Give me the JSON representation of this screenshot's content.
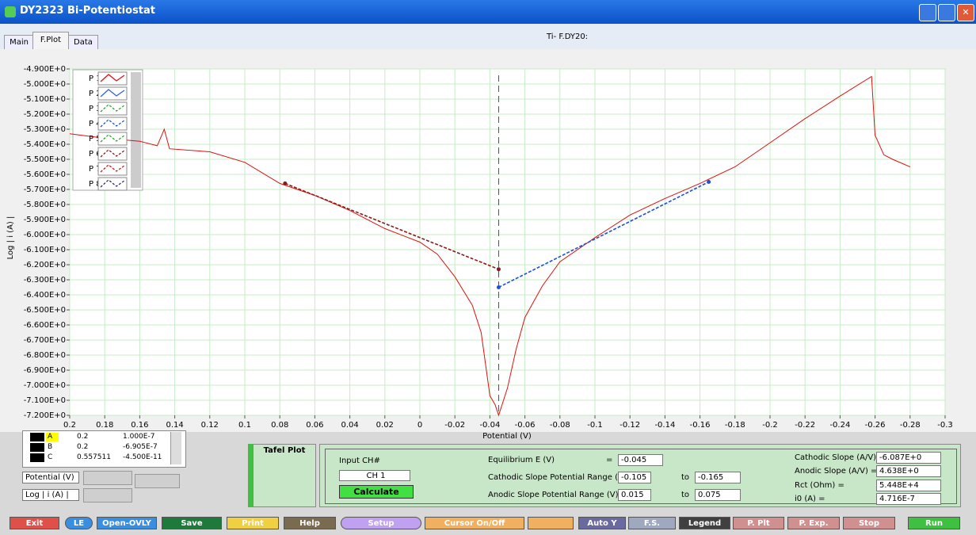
{
  "window": {
    "title": "DY2323 Bi-Potentiostat",
    "file": "Ti- F.DY20:"
  },
  "tabs": [
    "Main",
    "F.Plot",
    "Data"
  ],
  "chart_data": {
    "type": "line",
    "x_label": "Potential (V)",
    "y_label": "Log | i (A) |",
    "xlim": [
      0.2,
      -0.3
    ],
    "ylim": [
      -7.2,
      -4.9
    ],
    "grid": true,
    "legend": "top-left",
    "xticks": [
      0.2,
      0.18,
      0.16,
      0.14,
      0.12,
      0.1,
      0.08,
      0.06,
      0.04,
      0.02,
      0,
      -0.02,
      -0.04,
      -0.06,
      -0.08,
      -0.1,
      -0.12,
      -0.14,
      -0.16,
      -0.18,
      -0.2,
      -0.22,
      -0.24,
      -0.26,
      -0.28,
      -0.3
    ],
    "yticks": [
      {
        "value": -4.9,
        "label": "-4.900E+0"
      },
      {
        "value": -5.0,
        "label": "-5.000E+0"
      },
      {
        "value": -5.1,
        "label": "-5.100E+0"
      },
      {
        "value": -5.2,
        "label": "-5.200E+0"
      },
      {
        "value": -5.3,
        "label": "-5.300E+0"
      },
      {
        "value": -5.4,
        "label": "-5.400E+0"
      },
      {
        "value": -5.5,
        "label": "-5.500E+0"
      },
      {
        "value": -5.6,
        "label": "-5.600E+0"
      },
      {
        "value": -5.7,
        "label": "-5.700E+0"
      },
      {
        "value": -5.8,
        "label": "-5.800E+0"
      },
      {
        "value": -5.9,
        "label": "-5.900E+0"
      },
      {
        "value": -6.0,
        "label": "-6.000E+0"
      },
      {
        "value": -6.1,
        "label": "-6.100E+0"
      },
      {
        "value": -6.2,
        "label": "-6.200E+0"
      },
      {
        "value": -6.3,
        "label": "-6.300E+0"
      },
      {
        "value": -6.4,
        "label": "-6.400E+0"
      },
      {
        "value": -6.5,
        "label": "-6.500E+0"
      },
      {
        "value": -6.6,
        "label": "-6.600E+0"
      },
      {
        "value": -6.7,
        "label": "-6.700E+0"
      },
      {
        "value": -6.8,
        "label": "-6.800E+0"
      },
      {
        "value": -6.9,
        "label": "-6.900E+0"
      },
      {
        "value": -7.0,
        "label": "-7.000E+0"
      },
      {
        "value": -7.1,
        "label": "-7.100E+0"
      },
      {
        "value": -7.2,
        "label": "-7.200E+0"
      }
    ],
    "cursor_x": -0.045,
    "cursor_color": "#1f4fd8",
    "series": [
      {
        "name": "P 1",
        "color": "#e01010",
        "dashed": false,
        "x": [
          0.2,
          0.18,
          0.16,
          0.15,
          0.146,
          0.143,
          0.12,
          0.1,
          0.08,
          0.06,
          0.04,
          0.02,
          0,
          -0.01,
          -0.02,
          -0.03,
          -0.035,
          -0.04,
          -0.043,
          -0.045,
          -0.05,
          -0.055,
          -0.06,
          -0.07,
          -0.08,
          -0.1,
          -0.12,
          -0.14,
          -0.16,
          -0.18,
          -0.2,
          -0.22,
          -0.24,
          -0.258,
          -0.26,
          -0.265,
          -0.27,
          -0.28
        ],
        "values": [
          -5.33,
          -5.36,
          -5.38,
          -5.41,
          -5.3,
          -5.43,
          -5.45,
          -5.52,
          -5.66,
          -5.74,
          -5.84,
          -5.96,
          -6.05,
          -6.13,
          -6.28,
          -6.47,
          -6.65,
          -7.07,
          -7.13,
          -7.2,
          -7.02,
          -6.76,
          -6.55,
          -6.34,
          -6.18,
          -6.02,
          -5.87,
          -5.76,
          -5.66,
          -5.55,
          -5.39,
          -5.23,
          -5.08,
          -4.95,
          -5.34,
          -5.47,
          -5.5,
          -5.55
        ]
      },
      {
        "name": "P 2",
        "color": "#3060e0",
        "dashed": false,
        "x": [],
        "values": []
      },
      {
        "name": "P 3",
        "color": "#30a030",
        "dashed": true,
        "x": [],
        "values": []
      },
      {
        "name": "P 4",
        "color": "#1f4fd8",
        "dashed": true,
        "x": [
          -0.045,
          -0.165
        ],
        "values": [
          -6.35,
          -5.65
        ]
      },
      {
        "name": "P 5",
        "color": "#30a030",
        "dashed": true,
        "x": [],
        "values": []
      },
      {
        "name": "P 6",
        "color": "#8b1a1a",
        "dashed": true,
        "x": [
          0.077,
          -0.045
        ],
        "values": [
          -5.66,
          -6.23
        ]
      },
      {
        "name": "P 7",
        "color": "#e01010",
        "dashed": true,
        "x": [],
        "values": []
      },
      {
        "name": "P 8",
        "color": "#303060",
        "dashed": true,
        "x": [],
        "values": []
      }
    ]
  },
  "cursor_table": {
    "rows": [
      [
        "A",
        "0.2",
        "1.000E-7"
      ],
      [
        "B",
        "0.2",
        "-6.905E-7"
      ],
      [
        "C",
        "0.557511",
        "-4.500E-11"
      ]
    ]
  },
  "axis_fields": [
    "Potential (V)",
    "Log | i (A) |"
  ],
  "tafel": {
    "title": "Tafel Plot",
    "input_label": "Input CH#",
    "input_value": "CH 1",
    "calculate": "Calculate",
    "eq_label": "Equilibrium E (V)",
    "eq_sign": "=",
    "eq_value": "-0.045",
    "cath_label": "Cathodic Slope Potential Range (V) =",
    "cath_from": "-0.105",
    "cath_to_word": "to",
    "cath_to": "-0.165",
    "anod_label": "Anodic Slope Potential Range (V)  =",
    "anod_from": "0.015",
    "anod_to_word": "to",
    "anod_to": "0.075",
    "results": [
      [
        "Cathodic Slope (A/V) =",
        "-6.087E+0"
      ],
      [
        "Anodic Slope (A/V) =",
        "4.638E+0"
      ],
      [
        "Rct (Ohm) =",
        "5.448E+4"
      ],
      [
        "i0 (A) =",
        "4.716E-7"
      ]
    ]
  },
  "buttons": [
    {
      "label": "Exit",
      "color": "#e0504a"
    },
    {
      "label": "LE",
      "color": "#3a8ee0"
    },
    {
      "label": "Open-OVLY",
      "color": "#3a8ee0"
    },
    {
      "label": "Save",
      "color": "#1e7a3a"
    },
    {
      "label": "Print",
      "color": "#f0d040"
    },
    {
      "label": "Help",
      "color": "#7a6a50"
    },
    {
      "label": "Setup",
      "color": "#c0a0f0"
    },
    {
      "label": "Cursor On/Off",
      "color": "#f0b060"
    },
    {
      "label": "Auto Y",
      "color": "#6a6aa0"
    },
    {
      "label": "F.S.",
      "color": "#a0a8c0"
    },
    {
      "label": "Legend",
      "color": "#404040"
    },
    {
      "label": "P. Plt",
      "color": "#d09090"
    },
    {
      "label": "P. Exp.",
      "color": "#d09090"
    },
    {
      "label": "Stop",
      "color": "#d09090"
    },
    {
      "label": "Run",
      "color": "#40c040"
    }
  ]
}
